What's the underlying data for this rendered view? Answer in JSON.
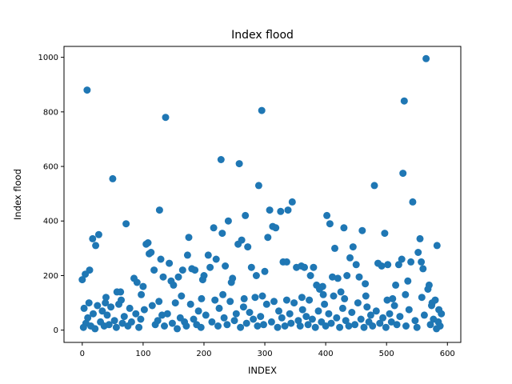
{
  "chart_data": {
    "type": "scatter",
    "title": "Index flood",
    "xlabel": "INDEX",
    "ylabel": "Index flood",
    "xlim": [
      -30,
      622
    ],
    "ylim": [
      -45,
      1040
    ],
    "xticks": [
      0,
      100,
      200,
      300,
      400,
      500,
      600
    ],
    "yticks": [
      0,
      200,
      400,
      600,
      800,
      1000
    ],
    "grid": false,
    "legend": "none",
    "marker_color": "#1f77b4",
    "series": [
      {
        "points": [
          [
            0,
            185
          ],
          [
            3,
            80
          ],
          [
            5,
            205
          ],
          [
            8,
            880
          ],
          [
            12,
            220
          ],
          [
            17,
            335
          ],
          [
            22,
            310
          ],
          [
            27,
            350
          ],
          [
            38,
            100
          ],
          [
            50,
            555
          ],
          [
            57,
            140
          ],
          [
            63,
            140
          ],
          [
            72,
            390
          ],
          [
            85,
            190
          ],
          [
            90,
            175
          ],
          [
            100,
            160
          ],
          [
            105,
            315
          ],
          [
            108,
            320
          ],
          [
            110,
            280
          ],
          [
            113,
            285
          ],
          [
            118,
            220
          ],
          [
            127,
            440
          ],
          [
            129,
            260
          ],
          [
            133,
            195
          ],
          [
            137,
            780
          ],
          [
            143,
            245
          ],
          [
            146,
            180
          ],
          [
            150,
            165
          ],
          [
            158,
            195
          ],
          [
            165,
            220
          ],
          [
            173,
            275
          ],
          [
            175,
            340
          ],
          [
            180,
            225
          ],
          [
            185,
            220
          ],
          [
            198,
            185
          ],
          [
            200,
            200
          ],
          [
            207,
            275
          ],
          [
            210,
            230
          ],
          [
            216,
            375
          ],
          [
            220,
            260
          ],
          [
            228,
            625
          ],
          [
            230,
            355
          ],
          [
            235,
            235
          ],
          [
            240,
            400
          ],
          [
            245,
            175
          ],
          [
            247,
            190
          ],
          [
            256,
            315
          ],
          [
            258,
            610
          ],
          [
            262,
            330
          ],
          [
            268,
            420
          ],
          [
            272,
            305
          ],
          [
            278,
            230
          ],
          [
            286,
            200
          ],
          [
            290,
            530
          ],
          [
            295,
            805
          ],
          [
            300,
            215
          ],
          [
            305,
            340
          ],
          [
            308,
            440
          ],
          [
            313,
            380
          ],
          [
            318,
            375
          ],
          [
            326,
            435
          ],
          [
            330,
            250
          ],
          [
            336,
            250
          ],
          [
            338,
            440
          ],
          [
            345,
            470
          ],
          [
            352,
            230
          ],
          [
            360,
            235
          ],
          [
            365,
            230
          ],
          [
            375,
            200
          ],
          [
            380,
            230
          ],
          [
            385,
            165
          ],
          [
            390,
            150
          ],
          [
            395,
            160
          ],
          [
            402,
            420
          ],
          [
            407,
            390
          ],
          [
            411,
            195
          ],
          [
            415,
            300
          ],
          [
            420,
            190
          ],
          [
            425,
            140
          ],
          [
            430,
            375
          ],
          [
            435,
            200
          ],
          [
            440,
            265
          ],
          [
            445,
            305
          ],
          [
            450,
            240
          ],
          [
            455,
            195
          ],
          [
            460,
            365
          ],
          [
            465,
            170
          ],
          [
            480,
            530
          ],
          [
            486,
            245
          ],
          [
            492,
            235
          ],
          [
            497,
            355
          ],
          [
            502,
            240
          ],
          [
            510,
            115
          ],
          [
            515,
            165
          ],
          [
            520,
            240
          ],
          [
            525,
            260
          ],
          [
            527,
            575
          ],
          [
            529,
            840
          ],
          [
            535,
            180
          ],
          [
            540,
            250
          ],
          [
            543,
            470
          ],
          [
            552,
            285
          ],
          [
            555,
            335
          ],
          [
            557,
            250
          ],
          [
            560,
            225
          ],
          [
            565,
            995
          ],
          [
            568,
            150
          ],
          [
            570,
            165
          ],
          [
            575,
            100
          ],
          [
            580,
            110
          ],
          [
            583,
            310
          ],
          [
            2,
            10
          ],
          [
            6,
            25
          ],
          [
            9,
            45
          ],
          [
            14,
            15
          ],
          [
            18,
            60
          ],
          [
            21,
            5
          ],
          [
            25,
            90
          ],
          [
            30,
            30
          ],
          [
            33,
            70
          ],
          [
            36,
            15
          ],
          [
            41,
            55
          ],
          [
            44,
            20
          ],
          [
            47,
            85
          ],
          [
            53,
            35
          ],
          [
            56,
            10
          ],
          [
            60,
            95
          ],
          [
            66,
            25
          ],
          [
            69,
            50
          ],
          [
            75,
            15
          ],
          [
            78,
            80
          ],
          [
            81,
            30
          ],
          [
            88,
            60
          ],
          [
            93,
            10
          ],
          [
            96,
            40
          ],
          [
            102,
            75
          ],
          [
            115,
            90
          ],
          [
            120,
            20
          ],
          [
            124,
            35
          ],
          [
            131,
            55
          ],
          [
            135,
            15
          ],
          [
            140,
            60
          ],
          [
            148,
            25
          ],
          [
            153,
            100
          ],
          [
            156,
            5
          ],
          [
            161,
            45
          ],
          [
            168,
            30
          ],
          [
            171,
            15
          ],
          [
            178,
            95
          ],
          [
            183,
            40
          ],
          [
            188,
            20
          ],
          [
            191,
            70
          ],
          [
            195,
            10
          ],
          [
            203,
            55
          ],
          [
            213,
            30
          ],
          [
            218,
            110
          ],
          [
            223,
            15
          ],
          [
            225,
            80
          ],
          [
            233,
            45
          ],
          [
            238,
            20
          ],
          [
            243,
            105
          ],
          [
            250,
            35
          ],
          [
            253,
            60
          ],
          [
            260,
            10
          ],
          [
            265,
            85
          ],
          [
            270,
            25
          ],
          [
            275,
            65
          ],
          [
            281,
            40
          ],
          [
            284,
            120
          ],
          [
            288,
            15
          ],
          [
            293,
            50
          ],
          [
            298,
            20
          ],
          [
            303,
            95
          ],
          [
            311,
            30
          ],
          [
            315,
            105
          ],
          [
            321,
            10
          ],
          [
            323,
            70
          ],
          [
            328,
            45
          ],
          [
            333,
            15
          ],
          [
            341,
            60
          ],
          [
            343,
            25
          ],
          [
            348,
            100
          ],
          [
            355,
            35
          ],
          [
            358,
            15
          ],
          [
            362,
            75
          ],
          [
            368,
            50
          ],
          [
            371,
            20
          ],
          [
            373,
            110
          ],
          [
            378,
            40
          ],
          [
            383,
            10
          ],
          [
            388,
            70
          ],
          [
            393,
            30
          ],
          [
            398,
            95
          ],
          [
            400,
            15
          ],
          [
            405,
            60
          ],
          [
            409,
            25
          ],
          [
            413,
            125
          ],
          [
            418,
            45
          ],
          [
            423,
            10
          ],
          [
            428,
            80
          ],
          [
            433,
            35
          ],
          [
            438,
            15
          ],
          [
            443,
            65
          ],
          [
            448,
            20
          ],
          [
            453,
            100
          ],
          [
            458,
            40
          ],
          [
            463,
            10
          ],
          [
            468,
            85
          ],
          [
            471,
            30
          ],
          [
            474,
            55
          ],
          [
            477,
            15
          ],
          [
            483,
            70
          ],
          [
            489,
            25
          ],
          [
            494,
            45
          ],
          [
            499,
            10
          ],
          [
            505,
            60
          ],
          [
            508,
            30
          ],
          [
            513,
            90
          ],
          [
            517,
            20
          ],
          [
            522,
            50
          ],
          [
            532,
            15
          ],
          [
            537,
            75
          ],
          [
            547,
            35
          ],
          [
            550,
            10
          ],
          [
            562,
            55
          ],
          [
            572,
            20
          ],
          [
            577,
            40
          ],
          [
            582,
            5
          ],
          [
            585,
            30
          ],
          [
            588,
            15
          ],
          [
            590,
            60
          ],
          [
            11,
            100
          ],
          [
            39,
            120
          ],
          [
            64,
            110
          ],
          [
            97,
            130
          ],
          [
            126,
            105
          ],
          [
            163,
            125
          ],
          [
            196,
            115
          ],
          [
            231,
            130
          ],
          [
            266,
            115
          ],
          [
            296,
            125
          ],
          [
            336,
            110
          ],
          [
            361,
            120
          ],
          [
            396,
            130
          ],
          [
            431,
            115
          ],
          [
            466,
            125
          ],
          [
            501,
            110
          ],
          [
            531,
            130
          ],
          [
            558,
            120
          ],
          [
            574,
            90
          ],
          [
            586,
            75
          ]
        ]
      }
    ]
  }
}
